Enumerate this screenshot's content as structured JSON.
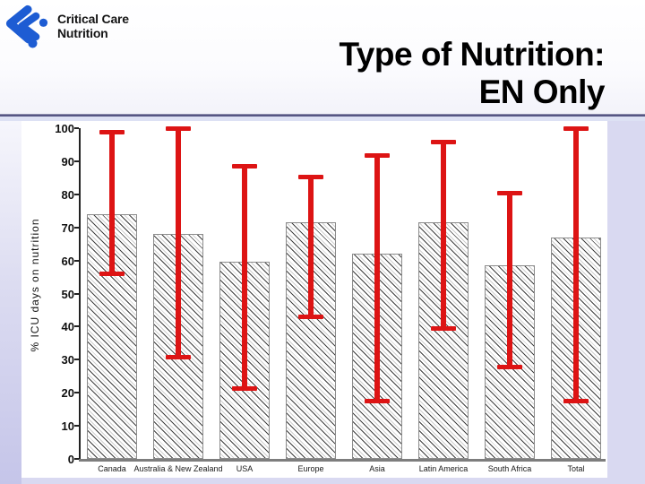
{
  "slide": {
    "brand": {
      "line1": "Critical Care",
      "line2": "Nutrition"
    },
    "title": {
      "line1": "Type of Nutrition:",
      "line2": "EN Only"
    }
  },
  "colors": {
    "logo_blue": "#1d5cd3",
    "error_bar_red": "#dd1414",
    "rule_dark": "#565684",
    "rule_light": "#dde1f4",
    "strip_lavender": "#d9d9f1",
    "left_strip_bottom": "#c5c5e9",
    "bar_border": "#8c8c8c",
    "hatch_line": "#1e1e1e",
    "axis_black": "#222222",
    "baseline_gray": "#7d7d7d"
  },
  "chart_data": {
    "type": "bar",
    "title": "Type of Nutrition: EN Only",
    "ylabel": "% ICU days on nutrition",
    "xlabel": "",
    "ylim": [
      0,
      100
    ],
    "yticks": [
      0,
      10,
      20,
      30,
      40,
      50,
      60,
      70,
      80,
      90,
      100
    ],
    "grid": false,
    "legend_position": "none",
    "bar_fill": "white with black diagonal hatch",
    "error_bar_color": "#dd1414",
    "categories": [
      "Canada",
      "Australia & New Zealand",
      "USA",
      "Europe",
      "Asia",
      "Latin America",
      "South Africa",
      "Total"
    ],
    "series": [
      {
        "name": "% ICU days on EN only",
        "values": [
          74,
          68,
          59.5,
          71.5,
          62,
          71.5,
          58.5,
          67
        ],
        "error_low": [
          56,
          31,
          21.5,
          43,
          17.5,
          39.5,
          28,
          17.5
        ],
        "error_high": [
          99,
          100,
          88.5,
          85.5,
          92,
          96,
          80.5,
          100
        ]
      }
    ]
  }
}
